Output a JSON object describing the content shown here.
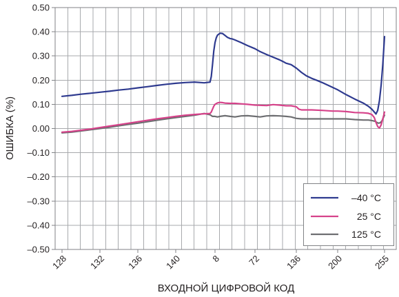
{
  "chart_data": {
    "type": "line",
    "xlabel": "ВХОДНОЙ ЦИФРОВОЙ КОД",
    "ylabel": "ОШИБКА (%)",
    "ylim": [
      -0.5,
      0.5
    ],
    "y_tick_labels": [
      "0.50",
      "0.40",
      "0.30",
      "0.20",
      "0.10",
      "0.00",
      "–0.10",
      "–0.20",
      "–0.30",
      "–0.40",
      "–0.50"
    ],
    "x_segments": [
      {
        "tick_labels": [
          "128",
          "132",
          "136",
          "140"
        ]
      },
      {
        "tick_labels": [
          "8",
          "72",
          "136",
          "200",
          "255"
        ]
      }
    ],
    "grid": true,
    "legend": {
      "position": "bottom-right"
    },
    "series": [
      {
        "name": "–40 °C",
        "color": "#2e3a8f",
        "segments": [
          {
            "x": [
              128,
              129,
              130,
              131,
              132,
              133,
              134,
              135,
              136,
              137,
              138,
              139,
              140,
              141,
              142,
              143
            ],
            "y": [
              0.133,
              0.137,
              0.142,
              0.146,
              0.15,
              0.154,
              0.159,
              0.163,
              0.168,
              0.173,
              0.178,
              0.183,
              0.187,
              0.19,
              0.192,
              0.189
            ]
          },
          {
            "x": [
              0,
              2,
              4,
              6,
              8,
              10,
              12,
              16,
              20,
              24,
              28,
              32,
              36,
              40,
              50,
              60,
              72,
              80,
              90,
              100,
              110,
              116,
              120,
              128,
              136,
              144,
              152,
              160,
              168,
              176,
              184,
              192,
              200,
              210,
              220,
              230,
              236,
              240,
              243,
              245,
              247,
              249,
              251,
              253,
              255
            ],
            "y": [
              0.192,
              0.215,
              0.265,
              0.32,
              0.355,
              0.375,
              0.386,
              0.394,
              0.393,
              0.385,
              0.377,
              0.372,
              0.37,
              0.366,
              0.355,
              0.343,
              0.33,
              0.318,
              0.306,
              0.295,
              0.284,
              0.276,
              0.27,
              0.264,
              0.25,
              0.232,
              0.217,
              0.207,
              0.199,
              0.19,
              0.18,
              0.17,
              0.16,
              0.14,
              0.122,
              0.105,
              0.092,
              0.08,
              0.068,
              0.06,
              0.075,
              0.115,
              0.18,
              0.265,
              0.38
            ]
          }
        ]
      },
      {
        "name": "25 °C",
        "color": "#d6428a",
        "segments": [
          {
            "x": [
              128,
              129,
              130,
              131,
              132,
              133,
              134,
              135,
              136,
              137,
              138,
              139,
              140,
              141,
              142,
              143
            ],
            "y": [
              -0.015,
              -0.012,
              -0.007,
              -0.002,
              0.004,
              0.01,
              0.016,
              0.022,
              0.028,
              0.034,
              0.04,
              0.045,
              0.05,
              0.055,
              0.058,
              0.061
            ]
          },
          {
            "x": [
              0,
              2,
              4,
              6,
              8,
              12,
              16,
              20,
              24,
              32,
              40,
              50,
              60,
              72,
              80,
              90,
              100,
              110,
              120,
              128,
              136,
              140,
              144,
              160,
              176,
              192,
              200,
              210,
              220,
              230,
              236,
              240,
              243,
              245,
              247,
              249,
              251,
              253,
              255
            ],
            "y": [
              0.062,
              0.068,
              0.08,
              0.092,
              0.1,
              0.106,
              0.108,
              0.107,
              0.105,
              0.104,
              0.104,
              0.102,
              0.1,
              0.097,
              0.096,
              0.095,
              0.099,
              0.097,
              0.094,
              0.094,
              0.09,
              0.08,
              0.077,
              0.077,
              0.075,
              0.072,
              0.072,
              0.07,
              0.066,
              0.065,
              0.063,
              0.058,
              0.045,
              0.025,
              0.008,
              0.002,
              0.015,
              0.04,
              0.068
            ]
          }
        ]
      },
      {
        "name": "125 °C",
        "color": "#6d6e71",
        "segments": [
          {
            "x": [
              128,
              129,
              130,
              131,
              132,
              133,
              134,
              135,
              136,
              137,
              138,
              139,
              140,
              141,
              142,
              143
            ],
            "y": [
              -0.018,
              -0.015,
              -0.01,
              -0.005,
              0.0,
              0.005,
              0.011,
              0.017,
              0.022,
              0.028,
              0.034,
              0.04,
              0.045,
              0.05,
              0.055,
              0.062
            ]
          },
          {
            "x": [
              0,
              4,
              8,
              12,
              16,
              24,
              32,
              40,
              50,
              60,
              72,
              80,
              90,
              100,
              110,
              120,
              128,
              136,
              144,
              160,
              176,
              192,
              200,
              210,
              220,
              230,
              236,
              240,
              244,
              246,
              248,
              250,
              252,
              254,
              255
            ],
            "y": [
              0.057,
              0.05,
              0.05,
              0.048,
              0.05,
              0.053,
              0.05,
              0.048,
              0.052,
              0.053,
              0.05,
              0.048,
              0.052,
              0.053,
              0.052,
              0.05,
              0.048,
              0.042,
              0.04,
              0.04,
              0.04,
              0.04,
              0.04,
              0.04,
              0.037,
              0.035,
              0.035,
              0.033,
              0.03,
              0.025,
              0.022,
              0.024,
              0.032,
              0.048,
              0.055
            ]
          }
        ]
      }
    ]
  }
}
